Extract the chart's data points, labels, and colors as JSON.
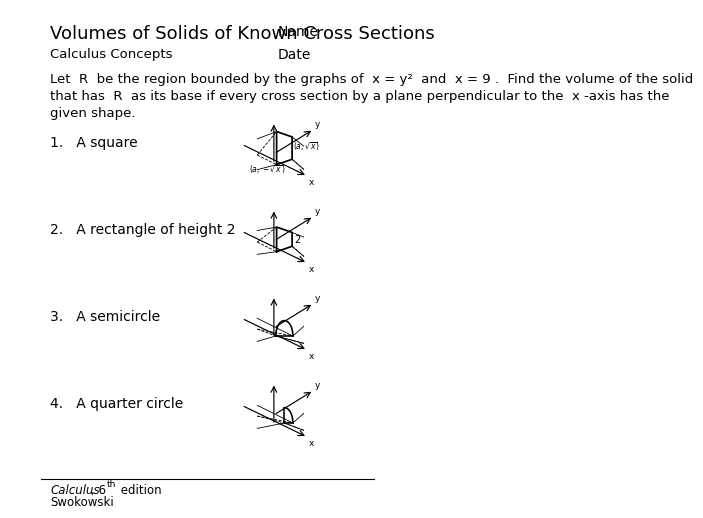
{
  "title": "Volumes of Solids of Known Cross Sections",
  "name_label": "Name",
  "subtitle": "Calculus Concepts",
  "date_label": "Date",
  "body_text_line1": "Let  R  be the region bounded by the graphs of  x = y²  and  x = 9 .  Find the volume of the solid",
  "body_text_line2": "that has  R  as its base if every cross section by a plane perpendicular to the  x -axis has the",
  "body_text_line3": "given shape.",
  "items": [
    "A square",
    "A rectangle of height 2",
    "A semicircle",
    "A quarter circle"
  ],
  "footer_line1_italic": "Calculus",
  "footer_line1_rest": ", 6",
  "footer_line1_super": "th",
  "footer_line1_end": " edition",
  "footer_line2": "Swokowski",
  "bg_color": "#ffffff",
  "text_color": "#000000",
  "diagram_color": "#000000",
  "title_fontsize": 13,
  "body_fontsize": 9.5,
  "item_fontsize": 10,
  "footer_fontsize": 8.5
}
